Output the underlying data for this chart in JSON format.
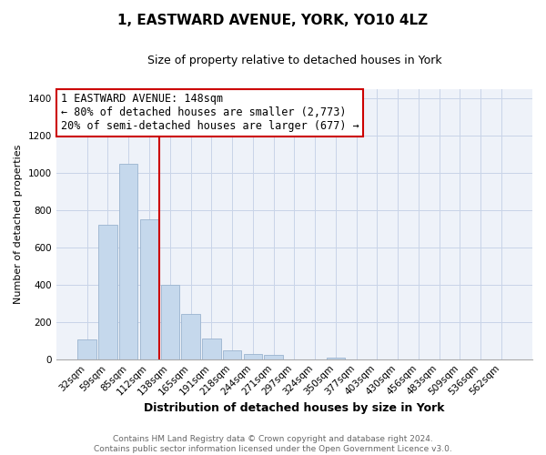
{
  "title": "1, EASTWARD AVENUE, YORK, YO10 4LZ",
  "subtitle": "Size of property relative to detached houses in York",
  "xlabel": "Distribution of detached houses by size in York",
  "ylabel": "Number of detached properties",
  "bar_values": [
    105,
    720,
    1050,
    750,
    400,
    245,
    110,
    48,
    28,
    25,
    0,
    0,
    10,
    0,
    0,
    0,
    0,
    0,
    0,
    0,
    0
  ],
  "bar_labels": [
    "32sqm",
    "59sqm",
    "85sqm",
    "112sqm",
    "138sqm",
    "165sqm",
    "191sqm",
    "218sqm",
    "244sqm",
    "271sqm",
    "297sqm",
    "324sqm",
    "350sqm",
    "377sqm",
    "403sqm",
    "430sqm",
    "456sqm",
    "483sqm",
    "509sqm",
    "536sqm",
    "562sqm"
  ],
  "bar_color": "#c5d8ec",
  "bar_edge_color": "#9ab4cf",
  "vline_x": 3.5,
  "vline_color": "#cc0000",
  "annotation_line1": "1 EASTWARD AVENUE: 148sqm",
  "annotation_line2": "← 80% of detached houses are smaller (2,773)",
  "annotation_line3": "20% of semi-detached houses are larger (677) →",
  "ylim": [
    0,
    1450
  ],
  "yticks": [
    0,
    200,
    400,
    600,
    800,
    1000,
    1200,
    1400
  ],
  "grid_color": "#c8d4e8",
  "background_color": "#eef2f9",
  "footer_text": "Contains HM Land Registry data © Crown copyright and database right 2024.\nContains public sector information licensed under the Open Government Licence v3.0.",
  "num_bars": 21,
  "title_fontsize": 11,
  "subtitle_fontsize": 9,
  "xlabel_fontsize": 9,
  "ylabel_fontsize": 8,
  "tick_fontsize": 7.5,
  "annot_fontsize": 8.5
}
